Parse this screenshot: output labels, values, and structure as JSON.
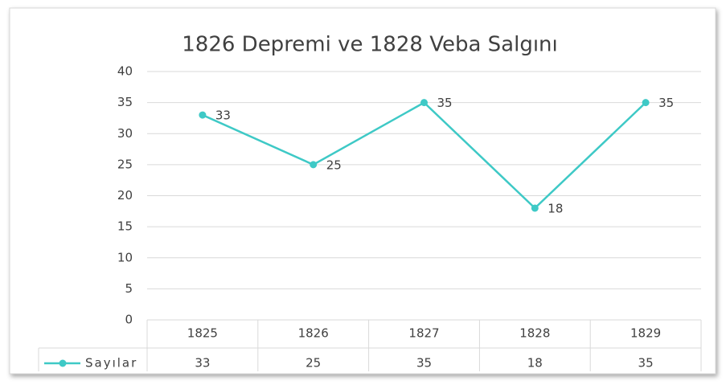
{
  "chart_data": {
    "type": "line",
    "title": "1826 Depremi ve 1828 Veba Salgını",
    "categories": [
      "1825",
      "1826",
      "1827",
      "1828",
      "1829"
    ],
    "series": [
      {
        "name": "Sayılar",
        "color": "#3ec9c6",
        "values": [
          33,
          25,
          35,
          18,
          35
        ]
      }
    ],
    "ylim": [
      0,
      40
    ],
    "yticks": [
      0,
      5,
      10,
      15,
      20,
      25,
      30,
      35,
      40
    ],
    "grid": true,
    "data_labels": true,
    "data_table": true
  }
}
